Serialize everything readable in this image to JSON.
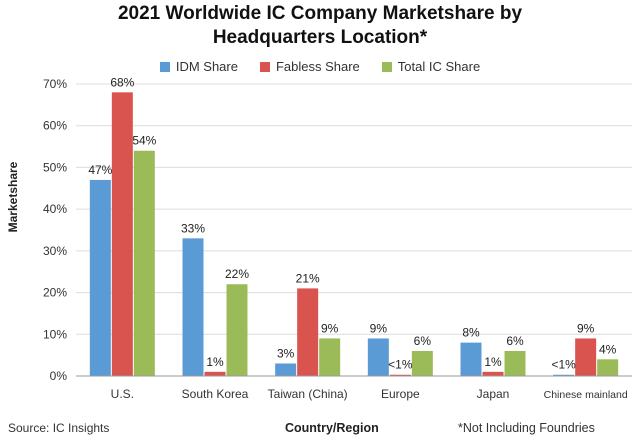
{
  "chart_data": {
    "type": "bar",
    "title": "2021 Worldwide IC Company Marketshare by",
    "title_line2": "Headquarters Location*",
    "xlabel": "Country/Region",
    "ylabel": "Marketshare",
    "ylim": [
      0,
      70
    ],
    "y_ticks": [
      "0%",
      "10%",
      "20%",
      "30%",
      "40%",
      "50%",
      "60%",
      "70%"
    ],
    "grid": true,
    "legend_position": "top",
    "categories": [
      "U.S.",
      "South Korea",
      "Taiwan (China)",
      "Europe",
      "Japan",
      "Chinese mainland"
    ],
    "series": [
      {
        "name": "IDM Share",
        "color": "#5b9bd5",
        "values": [
          47,
          33,
          3,
          9,
          8,
          0.3
        ],
        "labels": [
          "47%",
          "33%",
          "3%",
          "9%",
          "8%",
          "<1%"
        ]
      },
      {
        "name": "Fabless Share",
        "color": "#d9534f",
        "values": [
          68,
          1,
          21,
          0.3,
          1,
          9
        ],
        "labels": [
          "68%",
          "1%",
          "21%",
          "<1%",
          "1%",
          "9%"
        ]
      },
      {
        "name": "Total IC Share",
        "color": "#9bbb59",
        "values": [
          54,
          22,
          9,
          6,
          6,
          4
        ],
        "labels": [
          "54%",
          "22%",
          "9%",
          "6%",
          "6%",
          "4%"
        ]
      }
    ]
  },
  "footer": {
    "source": "Source: IC Insights",
    "note": "*Not Including Foundries"
  }
}
